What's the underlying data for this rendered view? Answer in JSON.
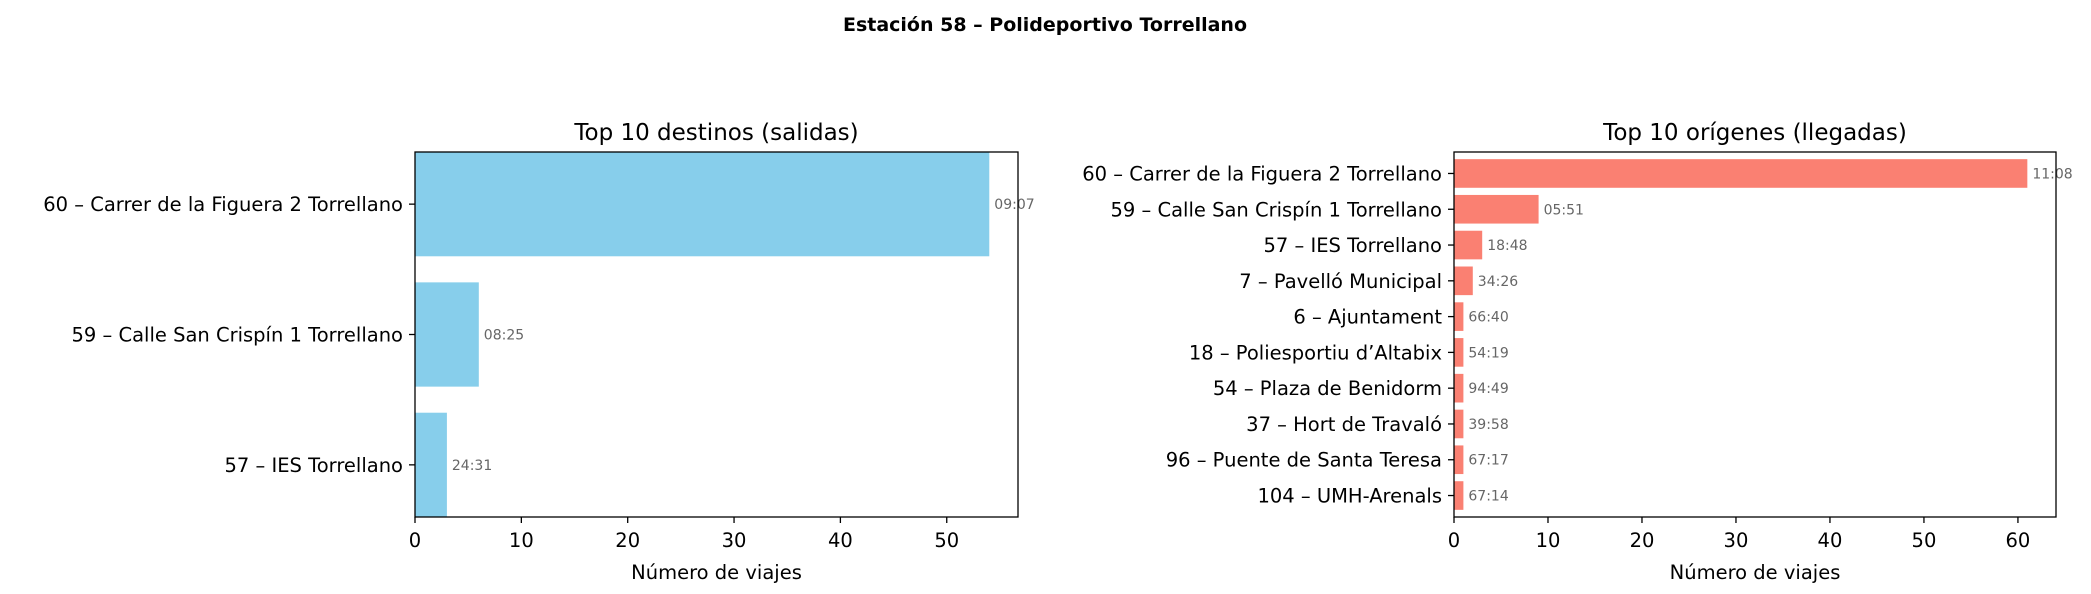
{
  "figure_title": "Estación 58 – Polideportivo Torrellano",
  "chart_data": [
    {
      "type": "bar",
      "orientation": "horizontal",
      "title": "Top 10 destinos (salidas)",
      "xlabel": "Número de viajes",
      "ylabel": "",
      "xlim": [
        0,
        56.7
      ],
      "xticks": [
        0,
        10,
        20,
        30,
        40,
        50
      ],
      "color": "#87CEEB",
      "categories": [
        "60 – Carrer de la Figuera 2 Torrellano",
        "59 – Calle San Crispín 1 Torrellano",
        "57 – IES Torrellano"
      ],
      "values": [
        54,
        6,
        3
      ],
      "annotations": [
        "09:07",
        "08:25",
        "24:31"
      ]
    },
    {
      "type": "bar",
      "orientation": "horizontal",
      "title": "Top 10 orígenes (llegadas)",
      "xlabel": "Número de viajes",
      "ylabel": "",
      "xlim": [
        0,
        64.05
      ],
      "xticks": [
        0,
        10,
        20,
        30,
        40,
        50,
        60
      ],
      "color": "#FA8072",
      "categories": [
        "60 – Carrer de la Figuera 2 Torrellano",
        "59 – Calle San Crispín 1 Torrellano",
        "57 – IES Torrellano",
        "7 – Pavelló Municipal",
        "6 – Ajuntament",
        "18 – Poliesportiu d’Altabix",
        "54 – Plaza de Benidorm",
        "37 – Hort de Travaló",
        "96 – Puente de Santa Teresa",
        "104 – UMH-Arenals"
      ],
      "values": [
        61,
        9,
        3,
        2,
        1,
        1,
        1,
        1,
        1,
        1
      ],
      "annotations": [
        "11:08",
        "05:51",
        "18:48",
        "34:26",
        "66:40",
        "54:19",
        "94:49",
        "39:58",
        "67:17",
        "67:14"
      ]
    }
  ]
}
